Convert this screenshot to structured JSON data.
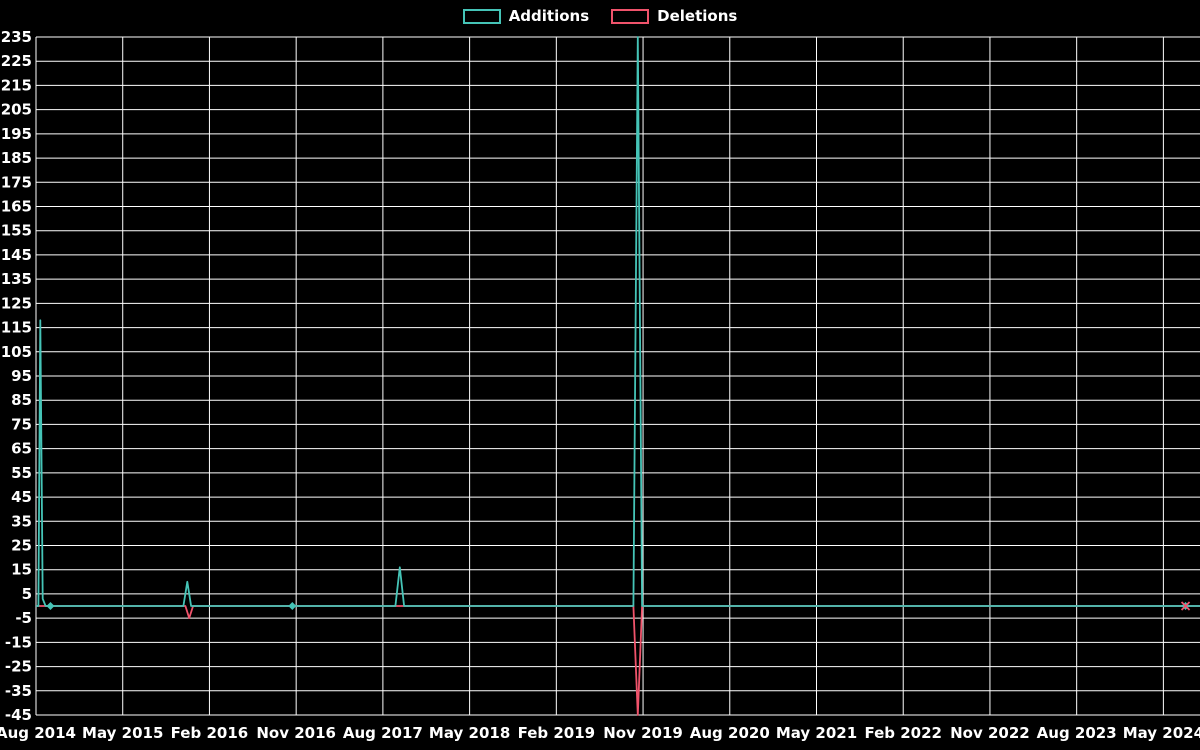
{
  "legend": {
    "items": [
      {
        "label": "Additions",
        "color": "#45C4B7"
      },
      {
        "label": "Deletions",
        "color": "#F0536B"
      }
    ]
  },
  "chart_data": {
    "type": "line",
    "title": "",
    "background": "#000000",
    "grid_color": "#ffffff",
    "legend_position": "top-center",
    "x_axis": {
      "label": "",
      "ticks": [
        "Aug 2014",
        "May 2015",
        "Feb 2016",
        "Nov 2016",
        "Aug 2017",
        "May 2018",
        "Feb 2019",
        "Nov 2019",
        "Aug 2020",
        "May 2021",
        "Feb 2022",
        "Nov 2022",
        "Aug 2023",
        "May 2024"
      ],
      "tick_month_index": [
        0,
        9,
        18,
        27,
        36,
        45,
        54,
        63,
        72,
        81,
        90,
        99,
        108,
        117
      ],
      "domain_months": [
        0,
        120.8
      ]
    },
    "y_axis": {
      "label": "",
      "ticks": [
        235,
        225,
        215,
        205,
        195,
        185,
        175,
        165,
        155,
        145,
        135,
        125,
        115,
        105,
        95,
        85,
        75,
        65,
        55,
        45,
        35,
        25,
        15,
        5,
        -5,
        -15,
        -25,
        -35,
        -45
      ],
      "min": -45,
      "max": 235
    },
    "series": [
      {
        "name": "Additions",
        "color": "#45C4B7",
        "marker_shape": "diamond",
        "points": [
          [
            0,
            0
          ],
          [
            0.25,
            0
          ],
          [
            0.45,
            118
          ],
          [
            0.7,
            3
          ],
          [
            1.0,
            0
          ],
          [
            1.5,
            0
          ],
          [
            15.3,
            0
          ],
          [
            15.7,
            10
          ],
          [
            16.1,
            0
          ],
          [
            26.6,
            0
          ],
          [
            37.3,
            0
          ],
          [
            37.75,
            16
          ],
          [
            38.2,
            0
          ],
          [
            62.0,
            0
          ],
          [
            62.45,
            235
          ],
          [
            62.9,
            0
          ],
          [
            119.3,
            0
          ],
          [
            120.8,
            0
          ]
        ],
        "markers": [
          [
            1.5,
            0
          ],
          [
            26.6,
            0
          ],
          [
            119.3,
            0
          ]
        ]
      },
      {
        "name": "Deletions",
        "color": "#F0536B",
        "marker_shape": "x",
        "points": [
          [
            0,
            0
          ],
          [
            15.5,
            0
          ],
          [
            15.9,
            -5
          ],
          [
            16.3,
            0
          ],
          [
            62.0,
            0
          ],
          [
            62.45,
            -45
          ],
          [
            62.9,
            0
          ],
          [
            119.3,
            0
          ],
          [
            120.8,
            0
          ]
        ],
        "markers": [
          [
            119.3,
            0
          ]
        ]
      }
    ]
  }
}
